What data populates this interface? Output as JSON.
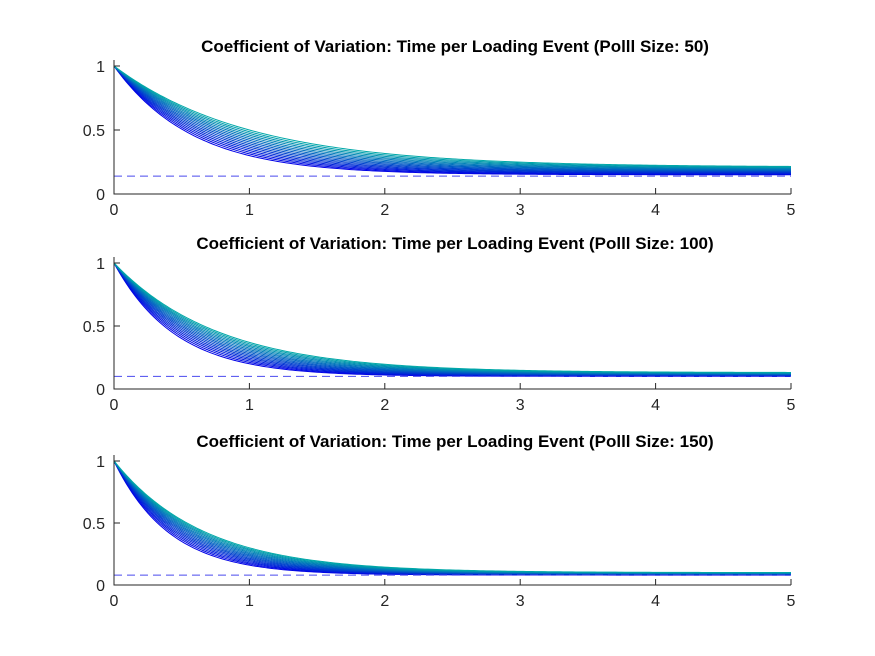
{
  "chart_data": [
    {
      "type": "line",
      "title": "Coefficient of Variation: Time per Loading Event (Polll Size: 50)",
      "xlabel": "",
      "ylabel": "",
      "xlim": [
        0,
        5
      ],
      "ylim": [
        0,
        1
      ],
      "x_ticks": [
        "0",
        "1",
        "2",
        "3",
        "4",
        "5"
      ],
      "y_ticks": [
        "0",
        "0.5",
        "1"
      ],
      "grid": false,
      "curve_family": {
        "count": 16,
        "start_value": 1,
        "value_at_x5": {
          "first": 0.16,
          "last": 0.22
        },
        "value_at_x1": {
          "first": 0.3,
          "last": 0.5
        }
      },
      "reference_line": {
        "style": "dashed",
        "value": 0.14,
        "color": "#4a4aee"
      },
      "colors": {
        "first": "#0000e6",
        "last": "#00a8a8"
      }
    },
    {
      "type": "line",
      "title": "Coefficient of Variation: Time per Loading Event (Polll Size: 100)",
      "xlabel": "",
      "ylabel": "",
      "xlim": [
        0,
        5
      ],
      "ylim": [
        0,
        1
      ],
      "x_ticks": [
        "0",
        "1",
        "2",
        "3",
        "4",
        "5"
      ],
      "y_ticks": [
        "0",
        "0.5",
        "1"
      ],
      "grid": false,
      "curve_family": {
        "count": 16,
        "start_value": 1,
        "value_at_x5": {
          "first": 0.11,
          "last": 0.14
        },
        "value_at_x1": {
          "first": 0.2,
          "last": 0.37
        }
      },
      "reference_line": {
        "style": "dashed",
        "value": 0.1,
        "color": "#4a4aee"
      },
      "colors": {
        "first": "#0000e6",
        "last": "#00a8a8"
      }
    },
    {
      "type": "line",
      "title": "Coefficient of Variation: Time per Loading Event (Polll Size: 150)",
      "xlabel": "",
      "ylabel": "",
      "xlim": [
        0,
        5
      ],
      "ylim": [
        0,
        1
      ],
      "x_ticks": [
        "0",
        "1",
        "2",
        "3",
        "4",
        "5"
      ],
      "y_ticks": [
        "0",
        "0.5",
        "1"
      ],
      "grid": false,
      "curve_family": {
        "count": 16,
        "start_value": 1,
        "value_at_x5": {
          "first": 0.09,
          "last": 0.11
        },
        "value_at_x1": {
          "first": 0.16,
          "last": 0.3
        }
      },
      "reference_line": {
        "style": "dashed",
        "value": 0.08,
        "color": "#4a4aee"
      },
      "colors": {
        "first": "#0000e6",
        "last": "#00a8a8"
      }
    }
  ]
}
